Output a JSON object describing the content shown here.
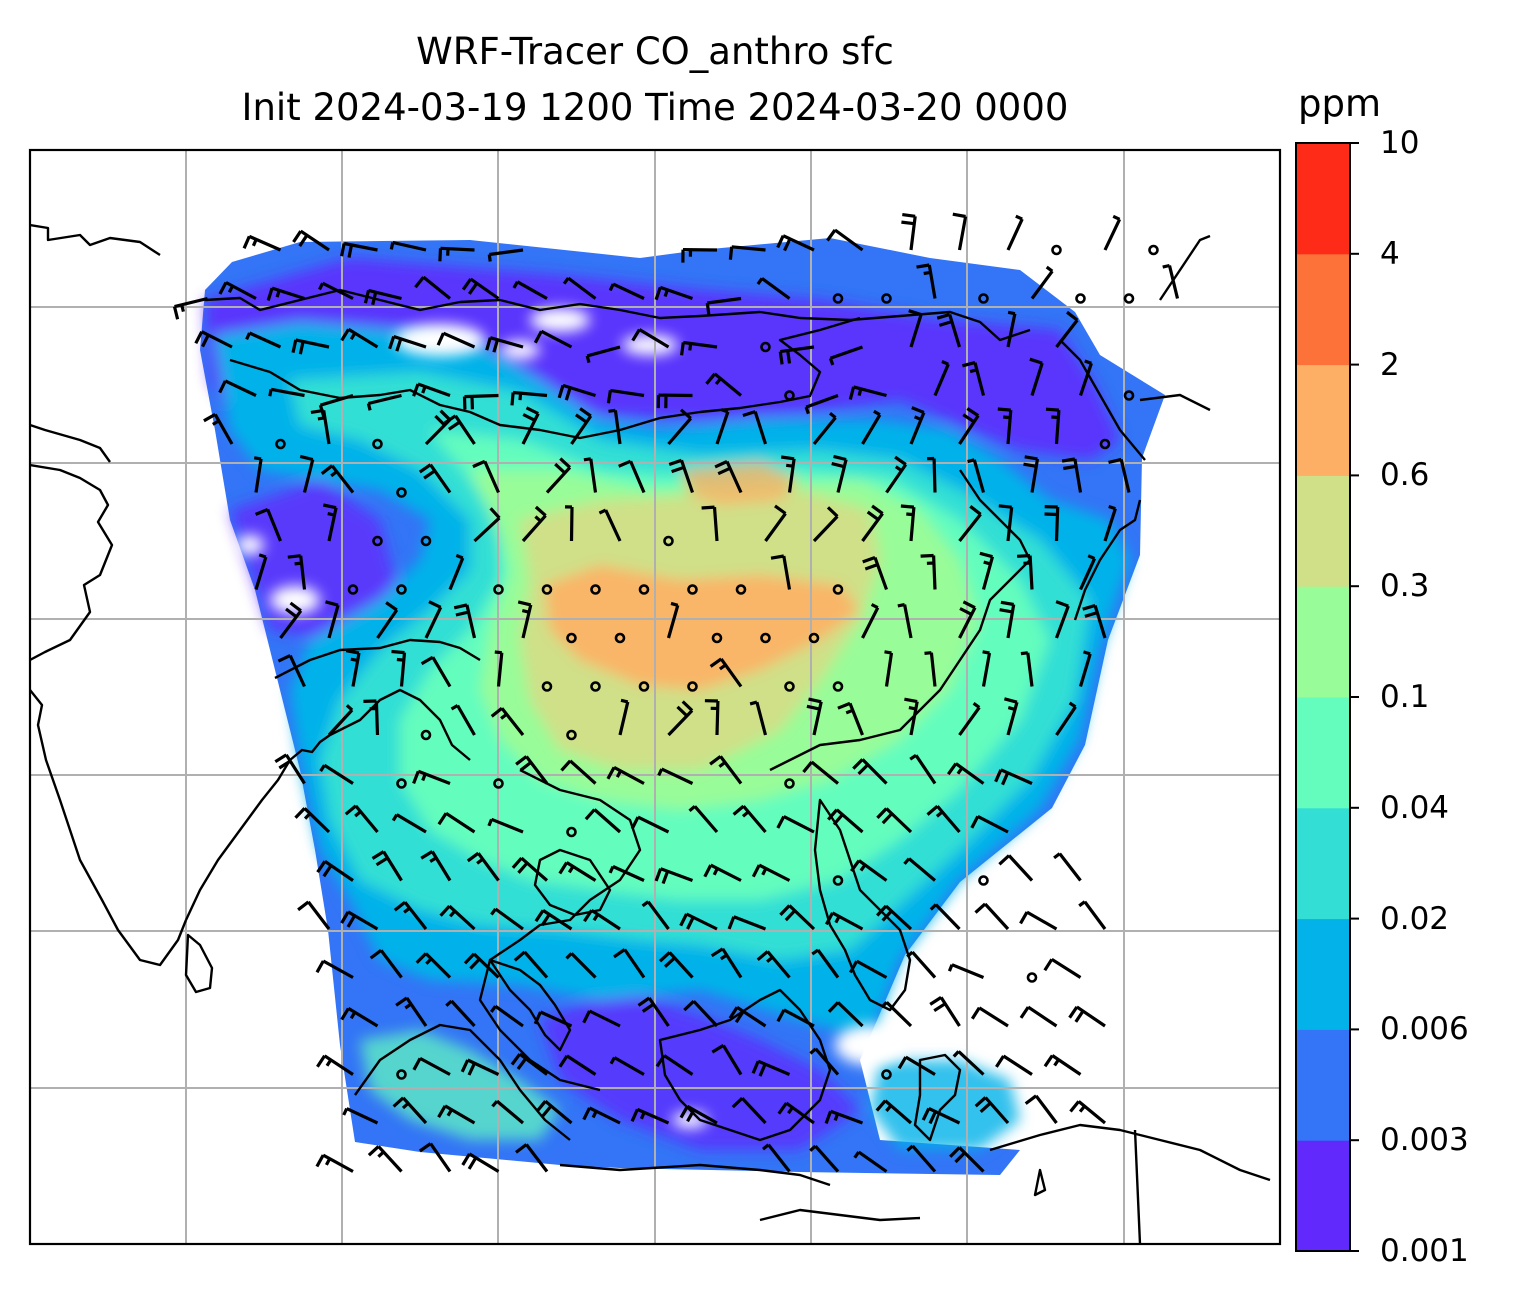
{
  "title": {
    "line1": "WRF-Tracer CO_anthro sfc",
    "line2": "Init 2024-03-19 1200 Time 2024-03-20 0000"
  },
  "colorbar": {
    "unit": "ppm",
    "levels": [
      "0.001",
      "0.003",
      "0.006",
      "0.02",
      "0.04",
      "0.1",
      "0.3",
      "0.6",
      "2",
      "4",
      "10"
    ],
    "colors": [
      "#6229fd",
      "#3375f6",
      "#03b2e9",
      "#33dfd4",
      "#64fdbe",
      "#98fc98",
      "#cfe088",
      "#fdb065",
      "#fd7239",
      "#fd2b18"
    ]
  },
  "map": {
    "variable": "CO_anthro",
    "level": "sfc",
    "overlay": "wind barbs",
    "gridlines": true,
    "coastlines": true,
    "colors": {
      "land_outline": "#000000",
      "grid": "#b0b0b0",
      "barb": "#000000"
    }
  }
}
